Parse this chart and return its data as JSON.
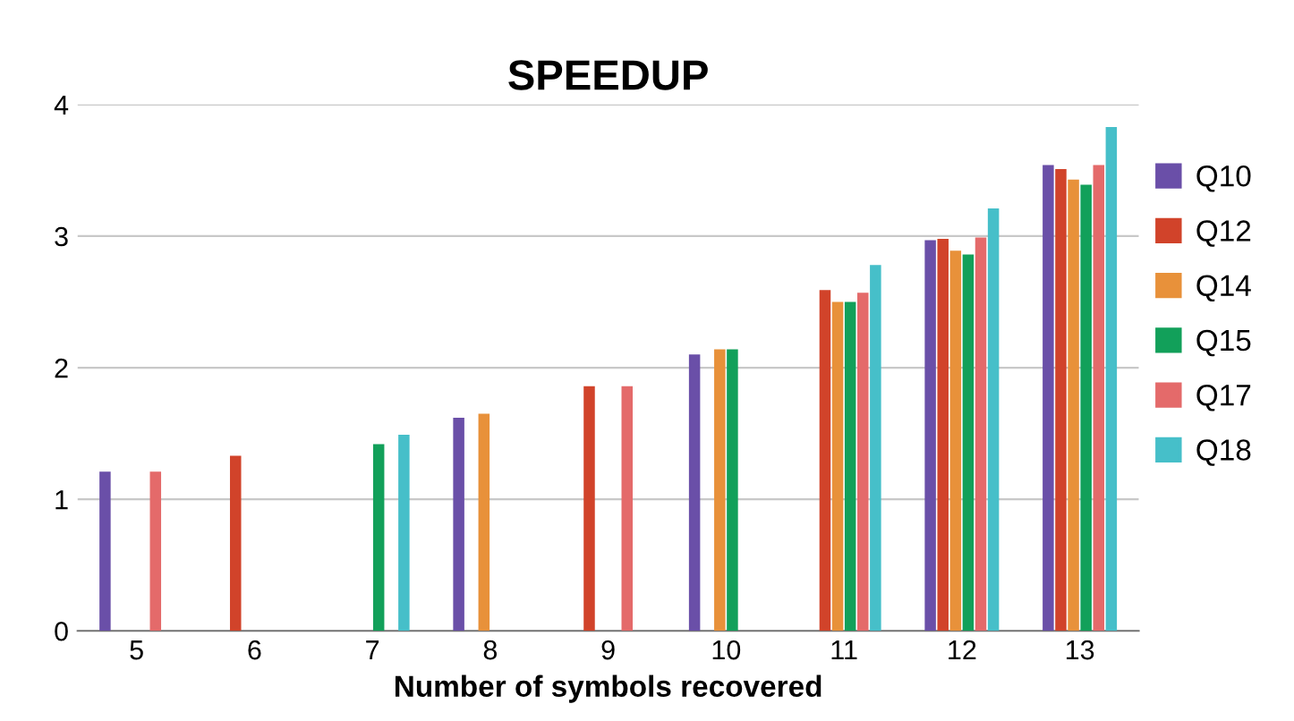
{
  "chart_data": {
    "type": "bar",
    "title": "SPEEDUP",
    "xlabel": "Number of symbols recovered",
    "categories": [
      "5",
      "6",
      "7",
      "8",
      "9",
      "10",
      "11",
      "12",
      "13"
    ],
    "series": [
      {
        "name": "Q10",
        "color": "#6a4fa8",
        "values": [
          1.21,
          null,
          null,
          1.62,
          null,
          2.1,
          null,
          2.97,
          3.54
        ]
      },
      {
        "name": "Q12",
        "color": "#d1432a",
        "values": [
          null,
          1.33,
          null,
          null,
          1.86,
          null,
          2.59,
          2.98,
          3.51
        ]
      },
      {
        "name": "Q14",
        "color": "#e8913a",
        "values": [
          null,
          null,
          null,
          1.65,
          null,
          2.14,
          2.5,
          2.89,
          3.43
        ]
      },
      {
        "name": "Q15",
        "color": "#12a05a",
        "values": [
          null,
          null,
          1.42,
          null,
          null,
          2.14,
          2.5,
          2.86,
          3.39
        ]
      },
      {
        "name": "Q17",
        "color": "#e46a6a",
        "values": [
          1.21,
          null,
          null,
          null,
          1.86,
          null,
          2.57,
          2.99,
          3.54
        ]
      },
      {
        "name": "Q18",
        "color": "#46bfc9",
        "values": [
          null,
          null,
          1.49,
          null,
          null,
          null,
          2.78,
          3.21,
          3.83
        ]
      }
    ],
    "ylim": [
      0,
      4
    ],
    "yticks": [
      0,
      1,
      2,
      3,
      4
    ],
    "grid": "y",
    "legend": "right"
  }
}
